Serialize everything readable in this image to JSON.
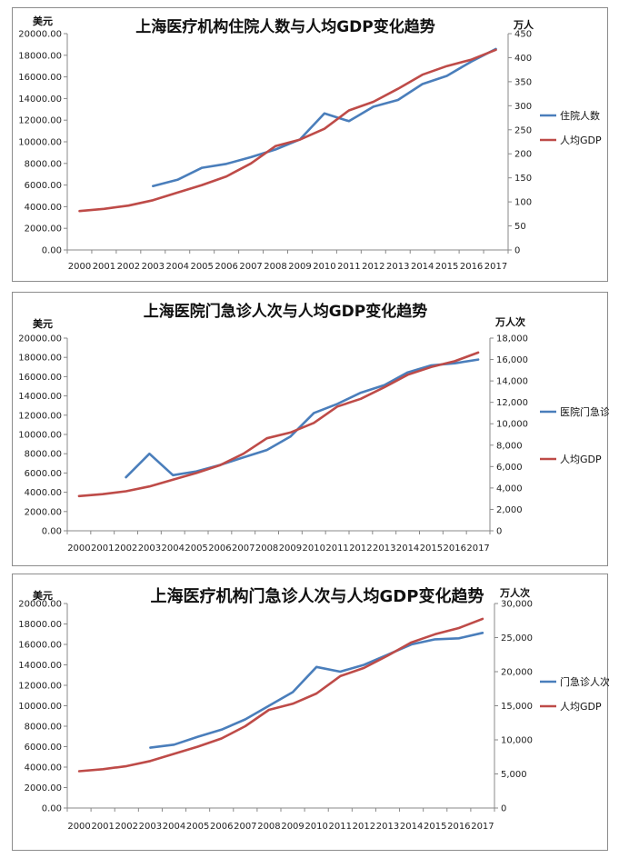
{
  "chart_data": [
    {
      "type": "line",
      "title": "上海医疗机构住院人数与人均GDP变化趋势",
      "y_left_unit": "美元",
      "y_right_unit": "万人",
      "x": [
        "2000",
        "2001",
        "2002",
        "2003",
        "2004",
        "2005",
        "2006",
        "2007",
        "2008",
        "2009",
        "2010",
        "2011",
        "2012",
        "2013",
        "2014",
        "2015",
        "2016",
        "2017"
      ],
      "left_ticks": [
        "0.00",
        "2000.00",
        "4000.00",
        "6000.00",
        "8000.00",
        "10000.00",
        "12000.00",
        "14000.00",
        "16000.00",
        "18000.00",
        "20000.00"
      ],
      "right_ticks": [
        "0",
        "50",
        "100",
        "150",
        "200",
        "250",
        "300",
        "350",
        "400",
        "450"
      ],
      "ylim_left": [
        0,
        20000
      ],
      "ylim_right": [
        0,
        450
      ],
      "series": [
        {
          "name": "住院人数",
          "axis": "right",
          "color": "#4a7ebb",
          "values": [
            null,
            null,
            null,
            133,
            146,
            171,
            179,
            193,
            209,
            230,
            284,
            268,
            298,
            312,
            345,
            362,
            392,
            418
          ]
        },
        {
          "name": "人均GDP",
          "axis": "left",
          "color": "#be4b48",
          "values": [
            3600,
            3800,
            4100,
            4600,
            5300,
            6000,
            6800,
            8000,
            9600,
            10200,
            11200,
            12900,
            13700,
            14900,
            16200,
            17000,
            17600,
            18500
          ]
        }
      ],
      "legend": "right"
    },
    {
      "type": "line",
      "title": "上海医院门急诊人次与人均GDP变化趋势",
      "y_left_unit": "美元",
      "y_right_unit": "万人次",
      "x": [
        "2000",
        "2001",
        "2002",
        "2003",
        "2004",
        "2005",
        "2006",
        "2007",
        "2008",
        "2009",
        "2010",
        "2011",
        "2012",
        "2013",
        "2014",
        "2015",
        "2016",
        "2017"
      ],
      "left_ticks": [
        "0.00",
        "2000.00",
        "4000.00",
        "6000.00",
        "8000.00",
        "10000.00",
        "12000.00",
        "14000.00",
        "16000.00",
        "18000.00",
        "20000.00"
      ],
      "right_ticks": [
        "0",
        "2,000",
        "4,000",
        "6,000",
        "8,000",
        "10,000",
        "12,000",
        "14,000",
        "16,000",
        "18,000"
      ],
      "ylim_left": [
        0,
        20000
      ],
      "ylim_right": [
        0,
        18000
      ],
      "series": [
        {
          "name": "医院门急诊人次",
          "axis": "right",
          "color": "#4a7ebb",
          "values": [
            null,
            null,
            5000,
            7200,
            5200,
            5550,
            6150,
            6850,
            7550,
            8800,
            11000,
            11850,
            12900,
            13600,
            14800,
            15450,
            15650,
            16000
          ]
        },
        {
          "name": "人均GDP",
          "axis": "left",
          "color": "#be4b48",
          "values": [
            3600,
            3800,
            4100,
            4600,
            5300,
            6000,
            6800,
            8000,
            9600,
            10200,
            11200,
            12900,
            13700,
            14900,
            16200,
            17000,
            17600,
            18500
          ]
        }
      ],
      "legend": "right"
    },
    {
      "type": "line",
      "title": "上海医疗机构门急诊人次与人均GDP变化趋势",
      "y_left_unit": "美元",
      "y_right_unit": "万人次",
      "x": [
        "2000",
        "2001",
        "2002",
        "2003",
        "2004",
        "2005",
        "2006",
        "2007",
        "2008",
        "2009",
        "2010",
        "2011",
        "2012",
        "2013",
        "2014",
        "2015",
        "2016",
        "2017"
      ],
      "left_ticks": [
        "0.00",
        "2000.00",
        "4000.00",
        "6000.00",
        "8000.00",
        "10000.00",
        "12000.00",
        "14000.00",
        "16000.00",
        "18000.00",
        "20000.00"
      ],
      "right_ticks": [
        "0",
        "5,000",
        "10,000",
        "15,000",
        "20,000",
        "25,000",
        "30,000"
      ],
      "ylim_left": [
        0,
        20000
      ],
      "ylim_right": [
        0,
        30000
      ],
      "series": [
        {
          "name": "门急诊人次",
          "axis": "right",
          "color": "#4a7ebb",
          "values": [
            null,
            null,
            null,
            8850,
            9300,
            10450,
            11500,
            13000,
            15000,
            17000,
            20700,
            20000,
            21000,
            22500,
            24000,
            24750,
            24900,
            25700
          ]
        },
        {
          "name": "人均GDP",
          "axis": "left",
          "color": "#be4b48",
          "values": [
            3600,
            3800,
            4100,
            4600,
            5300,
            6000,
            6800,
            8000,
            9600,
            10200,
            11200,
            12900,
            13700,
            14900,
            16200,
            17000,
            17600,
            18500
          ]
        }
      ],
      "legend": "right"
    }
  ]
}
